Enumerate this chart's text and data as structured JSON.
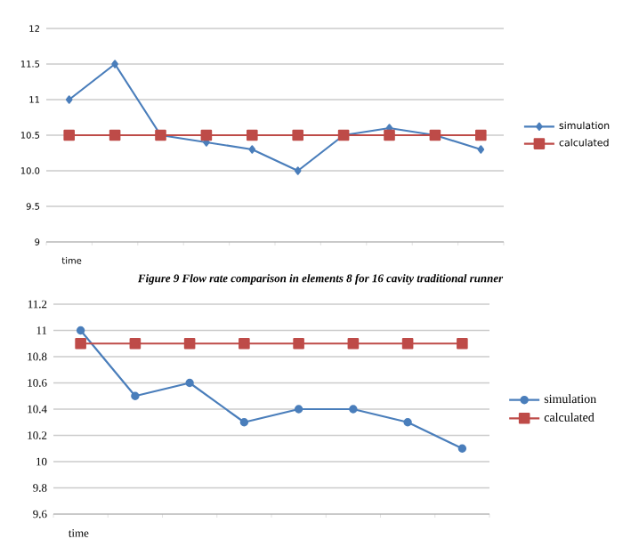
{
  "chart_data": [
    {
      "type": "line",
      "xlabel": "time",
      "categories": [
        null,
        null,
        null,
        null,
        null,
        null,
        null,
        null,
        null,
        null
      ],
      "series": [
        {
          "name": "simulation",
          "color": "#4a7ebb",
          "marker": "diamond",
          "values": [
            11,
            11.5,
            10.5,
            10.4,
            10.3,
            10.0,
            10.5,
            10.6,
            10.5,
            10.3
          ]
        },
        {
          "name": "calculated",
          "color": "#be4b48",
          "marker": "square",
          "values": [
            10.5,
            10.5,
            10.5,
            10.5,
            10.5,
            10.5,
            10.5,
            10.5,
            10.5,
            10.5
          ]
        }
      ],
      "ylim": [
        9,
        12
      ],
      "yticks": [
        9,
        {
          "value": 9.5,
          "label": "9.5"
        },
        {
          "value": 10,
          "label": "10.0"
        },
        {
          "value": 10.5,
          "label": "10.5"
        },
        11,
        {
          "value": 11.5,
          "label": "11.5"
        },
        12
      ],
      "grid": "y",
      "legend": "right",
      "annotations": [
        "Figure 9    Flow rate comparison in elements 8 for 16 cavity traditional runner"
      ]
    },
    {
      "type": "line",
      "xlabel": "time",
      "categories": [
        null,
        null,
        null,
        null,
        null,
        null,
        null,
        null
      ],
      "series": [
        {
          "name": "simulation",
          "color": "#4a7ebb",
          "marker": "circle",
          "values": [
            11,
            10.5,
            10.6,
            10.3,
            10.4,
            10.4,
            10.3,
            10.1
          ]
        },
        {
          "name": "calculated",
          "color": "#be4b48",
          "marker": "square",
          "values": [
            10.9,
            10.9,
            10.9,
            10.9,
            10.9,
            10.9,
            10.9,
            10.9
          ]
        }
      ],
      "ylim": [
        9.6,
        11.2
      ],
      "yticks": [
        {
          "value": 9.6,
          "label": "9.6"
        },
        {
          "value": 9.8,
          "label": "9.8"
        },
        10,
        {
          "value": 10.2,
          "label": "10.2"
        },
        {
          "value": 10.4,
          "label": "10.4"
        },
        {
          "value": 10.6,
          "label": "10.6"
        },
        {
          "value": 10.8,
          "label": "10.8"
        },
        11,
        {
          "value": 11.2,
          "label": "11.2"
        }
      ],
      "grid": "y",
      "legend": "right"
    }
  ]
}
